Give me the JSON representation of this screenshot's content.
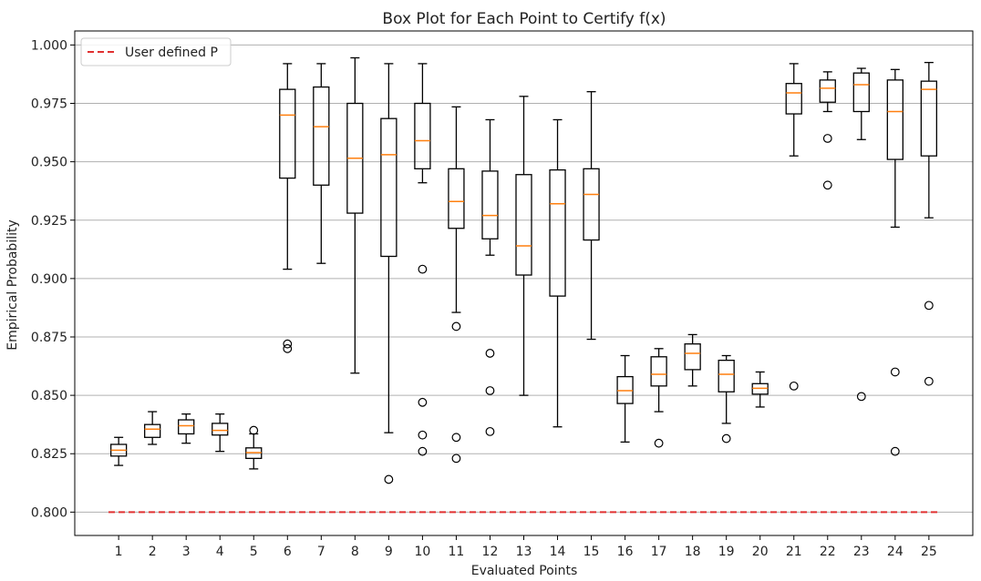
{
  "chart_data": {
    "type": "box",
    "title": "Box Plot for Each Point to Certify f(x)",
    "xlabel": "Evaluated Points",
    "ylabel": "Empirical Probability",
    "ylim": [
      0.79,
      1.006
    ],
    "xlim": [
      -0.3,
      26.3
    ],
    "yticks": [
      "0.800",
      "0.825",
      "0.850",
      "0.875",
      "0.900",
      "0.925",
      "0.950",
      "0.975",
      "1.000"
    ],
    "grid": "horizontal",
    "legend": {
      "position": "top-left",
      "entries": [
        "User defined P"
      ]
    },
    "reference_line": {
      "label": "User defined P",
      "value": 0.8,
      "x_from": 0.7,
      "x_to": 25.3,
      "color": "#e03030"
    },
    "colors": {
      "box": "#000000",
      "median": "#ff7f0e",
      "grid": "#b0b0b0"
    },
    "boxes": [
      {
        "label": "1",
        "whislo": 0.82,
        "q1": 0.824,
        "med": 0.8265,
        "q3": 0.829,
        "whishi": 0.832,
        "fliers": []
      },
      {
        "label": "2",
        "whislo": 0.829,
        "q1": 0.832,
        "med": 0.8355,
        "q3": 0.8375,
        "whishi": 0.843,
        "fliers": []
      },
      {
        "label": "3",
        "whislo": 0.8295,
        "q1": 0.8335,
        "med": 0.837,
        "q3": 0.8395,
        "whishi": 0.842,
        "fliers": []
      },
      {
        "label": "4",
        "whislo": 0.826,
        "q1": 0.833,
        "med": 0.835,
        "q3": 0.838,
        "whishi": 0.842,
        "fliers": []
      },
      {
        "label": "5",
        "whislo": 0.8185,
        "q1": 0.823,
        "med": 0.8255,
        "q3": 0.8275,
        "whishi": 0.8335,
        "fliers": [
          0.835
        ]
      },
      {
        "label": "6",
        "whislo": 0.904,
        "q1": 0.943,
        "med": 0.97,
        "q3": 0.981,
        "whishi": 0.992,
        "fliers": [
          0.872,
          0.87
        ]
      },
      {
        "label": "7",
        "whislo": 0.9065,
        "q1": 0.94,
        "med": 0.965,
        "q3": 0.982,
        "whishi": 0.992,
        "fliers": []
      },
      {
        "label": "8",
        "whislo": 0.8595,
        "q1": 0.928,
        "med": 0.9515,
        "q3": 0.975,
        "whishi": 0.9945,
        "fliers": []
      },
      {
        "label": "9",
        "whislo": 0.834,
        "q1": 0.9095,
        "med": 0.953,
        "q3": 0.9685,
        "whishi": 0.992,
        "fliers": [
          0.814
        ]
      },
      {
        "label": "10",
        "whislo": 0.941,
        "q1": 0.947,
        "med": 0.959,
        "q3": 0.975,
        "whishi": 0.992,
        "fliers": [
          0.904,
          0.847,
          0.833,
          0.826
        ]
      },
      {
        "label": "11",
        "whislo": 0.8855,
        "q1": 0.9215,
        "med": 0.933,
        "q3": 0.947,
        "whishi": 0.9735,
        "fliers": [
          0.8795,
          0.832,
          0.823
        ]
      },
      {
        "label": "12",
        "whislo": 0.91,
        "q1": 0.917,
        "med": 0.927,
        "q3": 0.946,
        "whishi": 0.968,
        "fliers": [
          0.868,
          0.852,
          0.8345
        ]
      },
      {
        "label": "13",
        "whislo": 0.85,
        "q1": 0.9015,
        "med": 0.914,
        "q3": 0.9445,
        "whishi": 0.978,
        "fliers": []
      },
      {
        "label": "14",
        "whislo": 0.8365,
        "q1": 0.8925,
        "med": 0.932,
        "q3": 0.9465,
        "whishi": 0.968,
        "fliers": []
      },
      {
        "label": "15",
        "whislo": 0.874,
        "q1": 0.9165,
        "med": 0.936,
        "q3": 0.947,
        "whishi": 0.98,
        "fliers": []
      },
      {
        "label": "16",
        "whislo": 0.83,
        "q1": 0.8465,
        "med": 0.852,
        "q3": 0.858,
        "whishi": 0.867,
        "fliers": []
      },
      {
        "label": "17",
        "whislo": 0.843,
        "q1": 0.854,
        "med": 0.859,
        "q3": 0.8665,
        "whishi": 0.87,
        "fliers": [
          0.8295
        ]
      },
      {
        "label": "18",
        "whislo": 0.854,
        "q1": 0.861,
        "med": 0.868,
        "q3": 0.872,
        "whishi": 0.876,
        "fliers": []
      },
      {
        "label": "19",
        "whislo": 0.838,
        "q1": 0.8515,
        "med": 0.859,
        "q3": 0.865,
        "whishi": 0.867,
        "fliers": [
          0.8315
        ]
      },
      {
        "label": "20",
        "whislo": 0.845,
        "q1": 0.8505,
        "med": 0.853,
        "q3": 0.855,
        "whishi": 0.86,
        "fliers": []
      },
      {
        "label": "21",
        "whislo": 0.9525,
        "q1": 0.9705,
        "med": 0.9795,
        "q3": 0.9835,
        "whishi": 0.992,
        "fliers": [
          0.854
        ]
      },
      {
        "label": "22",
        "whislo": 0.9715,
        "q1": 0.9755,
        "med": 0.9815,
        "q3": 0.985,
        "whishi": 0.9885,
        "fliers": [
          0.96,
          0.94
        ]
      },
      {
        "label": "23",
        "whislo": 0.9595,
        "q1": 0.9715,
        "med": 0.983,
        "q3": 0.988,
        "whishi": 0.99,
        "fliers": [
          0.8495
        ]
      },
      {
        "label": "24",
        "whislo": 0.922,
        "q1": 0.951,
        "med": 0.9715,
        "q3": 0.985,
        "whishi": 0.9895,
        "fliers": [
          0.86,
          0.826
        ]
      },
      {
        "label": "25",
        "whislo": 0.926,
        "q1": 0.9525,
        "med": 0.981,
        "q3": 0.9845,
        "whishi": 0.9925,
        "fliers": [
          0.8885,
          0.856
        ]
      }
    ]
  }
}
